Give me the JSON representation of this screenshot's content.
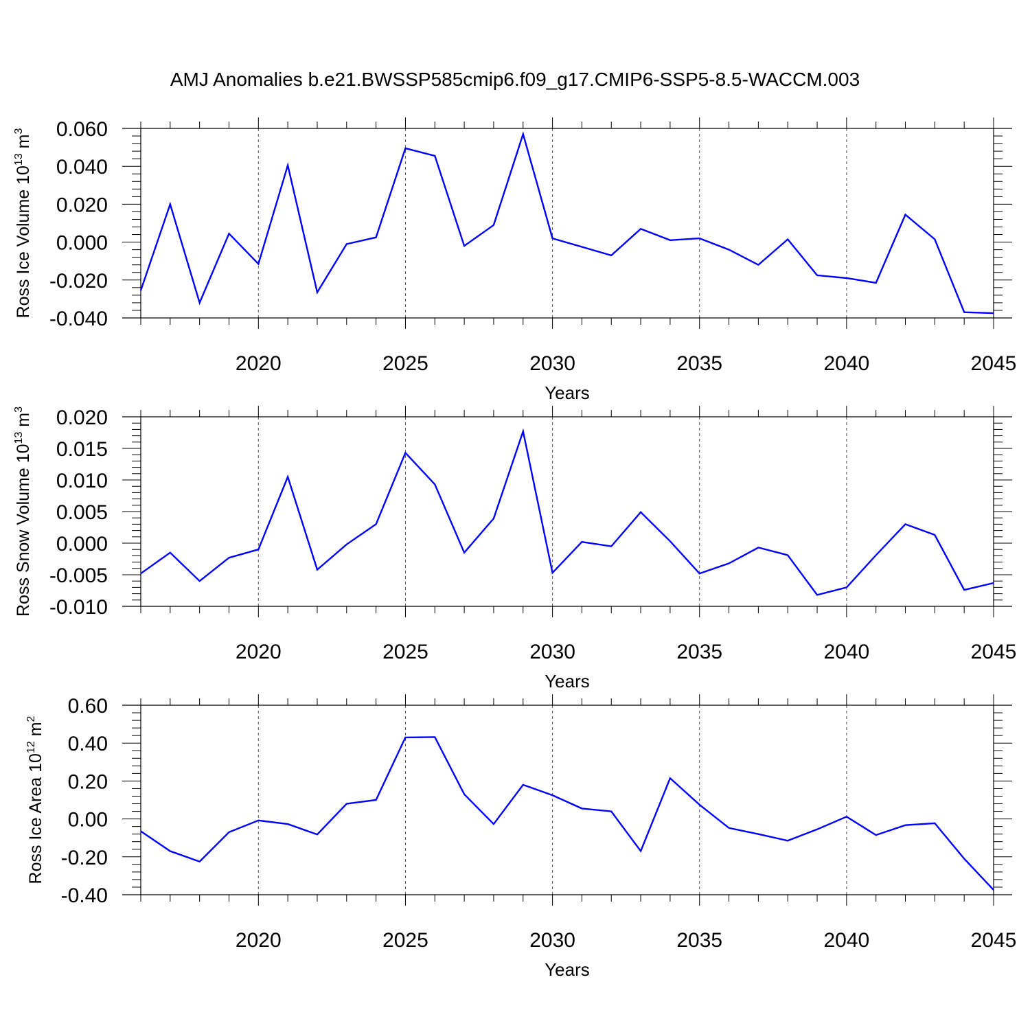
{
  "title": "AMJ Anomalies b.e21.BWSSP585cmip6.f09_g17.CMIP6-SSP5-8.5-WACCM.003",
  "line_color": "#0000ff",
  "chart_data": [
    {
      "type": "line",
      "ylabel_main": "Ross Ice Volume 10",
      "ylabel_exp": "13",
      "ylabel_unit": " m",
      "ylabel_unit_exp": "3",
      "xlabel": "Years",
      "xlim": [
        2016,
        2045
      ],
      "ylim": [
        -0.04,
        0.06
      ],
      "yticks": [
        -0.04,
        -0.02,
        0.0,
        0.02,
        0.04,
        0.06
      ],
      "ytick_labels": [
        "-0.040",
        "-0.020",
        "0.000",
        "0.020",
        "0.040",
        "0.060"
      ],
      "xticks": [
        2020,
        2025,
        2030,
        2035,
        2040,
        2045
      ],
      "xtick_labels": [
        "2020",
        "2025",
        "2030",
        "2035",
        "2040",
        "2045"
      ],
      "x": [
        2016,
        2017,
        2018,
        2019,
        2020,
        2021,
        2022,
        2023,
        2024,
        2025,
        2026,
        2027,
        2028,
        2029,
        2030,
        2031,
        2032,
        2033,
        2034,
        2035,
        2036,
        2037,
        2038,
        2039,
        2040,
        2041,
        2042,
        2043,
        2044,
        2045
      ],
      "y": [
        -0.0255,
        0.02,
        -0.032,
        0.0045,
        -0.0115,
        0.0405,
        -0.0265,
        -0.001,
        0.0025,
        0.0495,
        0.0455,
        -0.002,
        0.009,
        0.057,
        0.002,
        -0.0025,
        -0.007,
        0.007,
        0.001,
        0.002,
        -0.004,
        -0.012,
        0.0015,
        -0.0175,
        -0.019,
        -0.0215,
        0.0145,
        0.0015,
        -0.037,
        -0.0375
      ]
    },
    {
      "type": "line",
      "ylabel_main": "Ross Snow Volume 10",
      "ylabel_exp": "13",
      "ylabel_unit": " m",
      "ylabel_unit_exp": "3",
      "xlabel": "Years",
      "xlim": [
        2016,
        2045
      ],
      "ylim": [
        -0.01,
        0.02
      ],
      "yticks": [
        -0.01,
        -0.005,
        0.0,
        0.005,
        0.01,
        0.015,
        0.02
      ],
      "ytick_labels": [
        "-0.010",
        "-0.005",
        "0.000",
        "0.005",
        "0.010",
        "0.015",
        "0.020"
      ],
      "xticks": [
        2020,
        2025,
        2030,
        2035,
        2040,
        2045
      ],
      "xtick_labels": [
        "2020",
        "2025",
        "2030",
        "2035",
        "2040",
        "2045"
      ],
      "x": [
        2016,
        2017,
        2018,
        2019,
        2020,
        2021,
        2022,
        2023,
        2024,
        2025,
        2026,
        2027,
        2028,
        2029,
        2030,
        2031,
        2032,
        2033,
        2034,
        2035,
        2036,
        2037,
        2038,
        2039,
        2040,
        2041,
        2042,
        2043,
        2044,
        2045
      ],
      "y": [
        -0.0048,
        -0.0015,
        -0.006,
        -0.0023,
        -0.001,
        0.0105,
        -0.0042,
        -0.0002,
        0.003,
        0.0143,
        0.0093,
        -0.0015,
        0.0039,
        0.0177,
        -0.0047,
        0.0002,
        -0.0005,
        0.0049,
        0.0003,
        -0.0048,
        -0.0032,
        -0.0007,
        -0.0019,
        -0.0082,
        -0.007,
        -0.0019,
        0.003,
        0.0013,
        -0.0074,
        -0.0063
      ]
    },
    {
      "type": "line",
      "ylabel_main": "Ross Ice Area 10",
      "ylabel_exp": "12",
      "ylabel_unit": " m",
      "ylabel_unit_exp": "2",
      "xlabel": "Years",
      "xlim": [
        2016,
        2045
      ],
      "ylim": [
        -0.4,
        0.6
      ],
      "yticks": [
        -0.4,
        -0.2,
        0.0,
        0.2,
        0.4,
        0.6
      ],
      "ytick_labels": [
        "-0.40",
        "-0.20",
        "0.00",
        "0.20",
        "0.40",
        "0.60"
      ],
      "xticks": [
        2020,
        2025,
        2030,
        2035,
        2040,
        2045
      ],
      "xtick_labels": [
        "2020",
        "2025",
        "2030",
        "2035",
        "2040",
        "2045"
      ],
      "x": [
        2016,
        2017,
        2018,
        2019,
        2020,
        2021,
        2022,
        2023,
        2024,
        2025,
        2026,
        2027,
        2028,
        2029,
        2030,
        2031,
        2032,
        2033,
        2034,
        2035,
        2036,
        2037,
        2038,
        2039,
        2040,
        2041,
        2042,
        2043,
        2044,
        2045
      ],
      "y": [
        -0.065,
        -0.17,
        -0.225,
        -0.07,
        -0.008,
        -0.027,
        -0.082,
        0.08,
        0.1,
        0.43,
        0.432,
        0.13,
        -0.027,
        0.18,
        0.125,
        0.055,
        0.04,
        -0.17,
        0.215,
        0.075,
        -0.048,
        -0.08,
        -0.115,
        -0.055,
        0.012,
        -0.085,
        -0.033,
        -0.023,
        -0.21,
        -0.375
      ]
    }
  ]
}
